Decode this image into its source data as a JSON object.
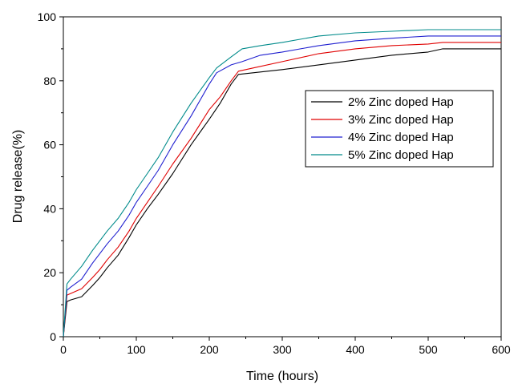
{
  "chart_data": {
    "type": "line",
    "xlabel": "Time (hours)",
    "ylabel": "Drug release(%)",
    "xlim": [
      0,
      600
    ],
    "ylim": [
      0,
      100
    ],
    "x_ticks": [
      0,
      100,
      200,
      300,
      400,
      500,
      600
    ],
    "y_ticks": [
      0,
      20,
      40,
      60,
      80,
      100
    ],
    "grid": false,
    "legend_position": "top-right",
    "series": [
      {
        "name": "2% Zinc doped Hap",
        "color": "#000000",
        "x": [
          0,
          5,
          10,
          25,
          40,
          50,
          60,
          75,
          90,
          100,
          115,
          130,
          150,
          175,
          200,
          215,
          230,
          240,
          260,
          300,
          350,
          400,
          450,
          500,
          520,
          600
        ],
        "y": [
          0,
          11,
          11.5,
          12.5,
          16,
          18.5,
          21.5,
          25.5,
          31,
          35,
          40,
          44.5,
          51,
          60,
          68,
          73,
          79,
          82,
          82.5,
          83.5,
          85,
          86.5,
          88,
          89,
          90,
          90
        ]
      },
      {
        "name": "3% Zinc doped Hap",
        "color": "#e00000",
        "x": [
          0,
          5,
          10,
          25,
          40,
          50,
          60,
          75,
          90,
          100,
          115,
          130,
          150,
          175,
          200,
          215,
          230,
          240,
          260,
          300,
          350,
          400,
          450,
          500,
          520,
          600
        ],
        "y": [
          0,
          13,
          13.5,
          15,
          18.5,
          21,
          24,
          28,
          33,
          37,
          42,
          47,
          54,
          62,
          71,
          75,
          80,
          83,
          84,
          86,
          88.5,
          90,
          91,
          91.5,
          92,
          92
        ]
      },
      {
        "name": "4% Zinc doped Hap",
        "color": "#2020d0",
        "x": [
          0,
          5,
          10,
          25,
          40,
          50,
          60,
          75,
          90,
          100,
          115,
          130,
          150,
          175,
          200,
          210,
          230,
          245,
          270,
          300,
          350,
          400,
          450,
          500,
          520,
          600
        ],
        "y": [
          0,
          14.5,
          15.5,
          18,
          23,
          26,
          29,
          33,
          38,
          42,
          47,
          52,
          60,
          69,
          79,
          82.5,
          85,
          86,
          88,
          89,
          91,
          92.5,
          93.3,
          94,
          94,
          94
        ]
      },
      {
        "name": "5% Zinc doped Hap",
        "color": "#008b8b",
        "x": [
          0,
          5,
          10,
          25,
          40,
          50,
          60,
          75,
          90,
          100,
          115,
          130,
          150,
          175,
          200,
          210,
          230,
          245,
          270,
          300,
          350,
          400,
          450,
          500,
          520,
          600
        ],
        "y": [
          0,
          16.5,
          18,
          22,
          27,
          30,
          33,
          37,
          42,
          46,
          51,
          56,
          64,
          73,
          81,
          84,
          87.5,
          90,
          91,
          92,
          94,
          95,
          95.5,
          96,
          96,
          96
        ]
      }
    ]
  }
}
